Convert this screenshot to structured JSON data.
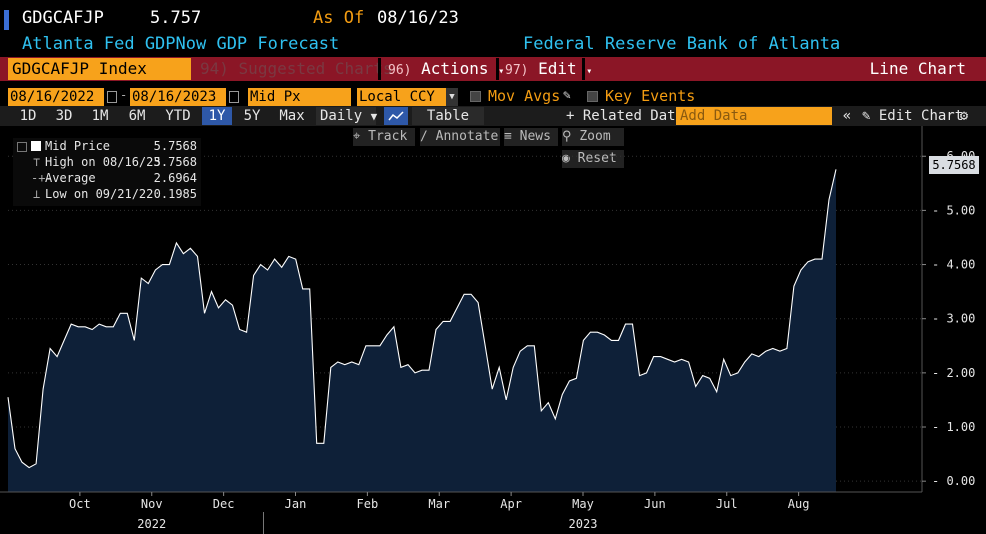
{
  "header": {
    "ticker": "GDGCAFJP",
    "price": "5.757",
    "as_of_label": "As Of",
    "as_of_date": "08/16/23",
    "security_name": "Atlanta Fed GDPNow GDP Forecast",
    "source": "Federal Reserve Bank of Atlanta"
  },
  "menu": {
    "index": "GDGCAFJP Index",
    "suggested_num": "94)",
    "suggested": "Suggested Charts",
    "actions_num": "96)",
    "actions": "Actions",
    "edit_num": "97)",
    "edit": "Edit",
    "chart_type": "Line Chart"
  },
  "dates": {
    "start": "08/16/2022",
    "end": "08/16/2023",
    "field": "Mid Px",
    "currency": "Local CCY",
    "mov_avgs": "Mov Avgs",
    "key_events": "Key Events"
  },
  "toolbar": {
    "ranges": [
      "1D",
      "3D",
      "1M",
      "6M",
      "YTD",
      "1Y",
      "5Y",
      "Max"
    ],
    "selected_range": "1Y",
    "frequency": "Daily",
    "table": "Table",
    "related": "Related Dat",
    "add_data_placeholder": "Add Data",
    "edit_chart": "Edit Chart"
  },
  "chart_tools": {
    "track": "Track",
    "annotate": "Annotate",
    "news": "News",
    "zoom": "Zoom",
    "reset": "Reset"
  },
  "legend": {
    "rows": [
      {
        "label": "Mid Price",
        "value": "5.7568"
      },
      {
        "label": "High on 08/16/23",
        "value": "5.7568"
      },
      {
        "label": "Average",
        "value": "2.6964"
      },
      {
        "label": "Low on 09/21/22",
        "value": "0.1985"
      }
    ]
  },
  "colors": {
    "accent_orange": "#f7a21b",
    "menu_red": "#8b1626",
    "title_cyan": "#2fc1f0",
    "area_fill": "#0e2038",
    "line_white": "#ffffff"
  },
  "chart_data": {
    "type": "area",
    "title": "Atlanta Fed GDPNow GDP Forecast",
    "series": [
      {
        "name": "Mid Price",
        "values": [
          1.55,
          0.6,
          0.35,
          0.25,
          0.32,
          1.7,
          2.45,
          2.3,
          2.6,
          2.9,
          2.85,
          2.85,
          2.8,
          2.9,
          2.85,
          2.85,
          3.1,
          3.1,
          2.6,
          3.75,
          3.65,
          3.9,
          4.0,
          4.0,
          4.4,
          4.2,
          4.3,
          4.15,
          3.1,
          3.5,
          3.2,
          3.35,
          3.25,
          2.8,
          2.75,
          3.8,
          4.0,
          3.9,
          4.1,
          3.95,
          4.15,
          4.1,
          3.55,
          3.55,
          0.7,
          0.7,
          2.1,
          2.2,
          2.15,
          2.2,
          2.15,
          2.5,
          2.5,
          2.5,
          2.7,
          2.85,
          2.1,
          2.15,
          2.0,
          2.05,
          2.05,
          2.8,
          2.95,
          2.95,
          3.2,
          3.45,
          3.45,
          3.3,
          2.5,
          1.7,
          2.1,
          1.5,
          2.1,
          2.4,
          2.5,
          2.5,
          1.3,
          1.45,
          1.15,
          1.6,
          1.85,
          1.9,
          2.6,
          2.75,
          2.75,
          2.7,
          2.6,
          2.6,
          2.9,
          2.9,
          1.95,
          2.0,
          2.3,
          2.3,
          2.25,
          2.2,
          2.25,
          2.2,
          1.75,
          1.95,
          1.9,
          1.65,
          2.25,
          1.95,
          2.0,
          2.2,
          2.35,
          2.3,
          2.4,
          2.45,
          2.4,
          2.45,
          3.6,
          3.9,
          4.05,
          4.1,
          4.1,
          5.2,
          5.7568
        ]
      }
    ],
    "x_start": "08/16/2022",
    "x_end": "08/16/2023",
    "xlabel_months": [
      "Oct",
      "Nov",
      "Dec",
      "Jan",
      "Feb",
      "Mar",
      "Apr",
      "May",
      "Jun",
      "Jul",
      "Aug"
    ],
    "x_month_positions": [
      1.5,
      2.5,
      3.5,
      4.5,
      5.5,
      6.5,
      7.5,
      8.5,
      9.5,
      10.5,
      11.5
    ],
    "years": [
      {
        "label": "2022",
        "at": 2.5
      },
      {
        "label": "2023",
        "at": 8.5
      }
    ],
    "year_divider_at": 4.5,
    "yticks": [
      "0.00",
      "1.00",
      "2.00",
      "3.00",
      "4.00",
      "5.00",
      "6.00"
    ],
    "ylim": [
      -0.2,
      6.3
    ],
    "last_value_label": "5.7568",
    "last_value": 5.7568
  }
}
